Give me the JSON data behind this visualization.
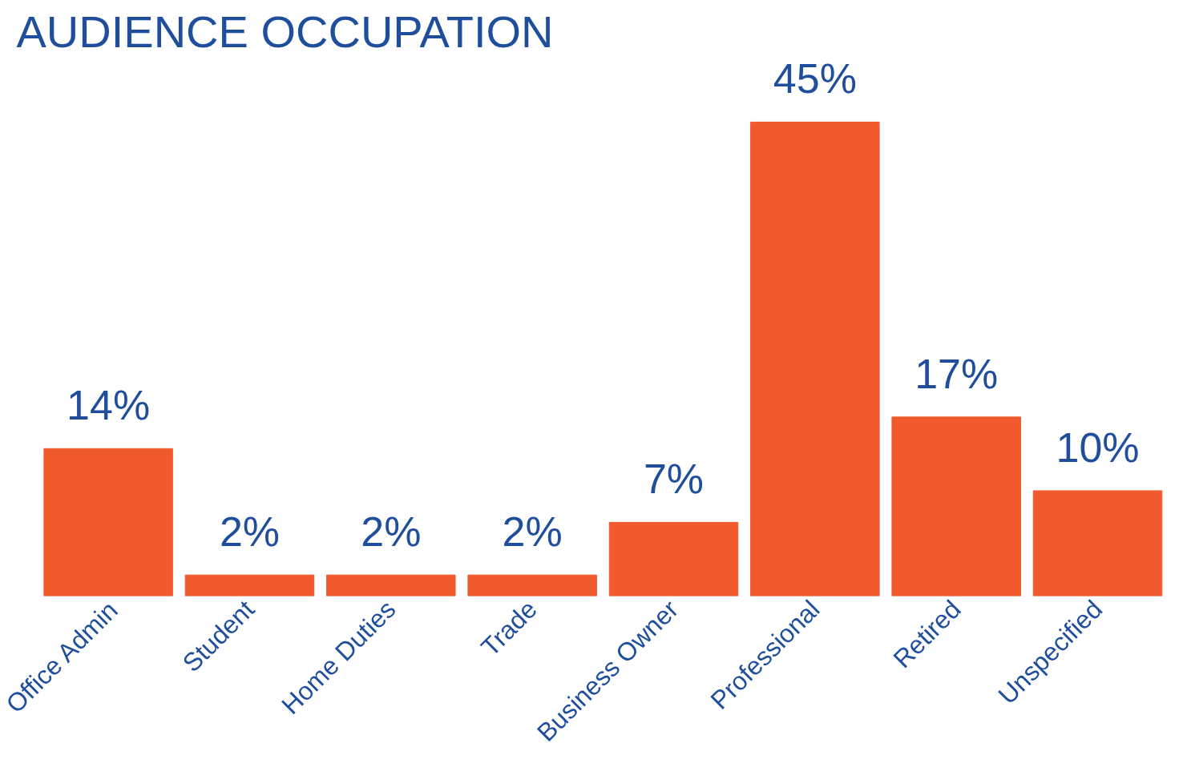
{
  "chart_data": {
    "type": "bar",
    "title": "AUDIENCE OCCUPATION",
    "categories": [
      "Office Admin",
      "Student",
      "Home Duties",
      "Trade",
      "Business Owner",
      "Professional",
      "Retired",
      "Unspecified"
    ],
    "values": [
      14,
      2,
      2,
      2,
      7,
      45,
      17,
      10
    ],
    "value_labels": [
      "14%",
      "2%",
      "2%",
      "2%",
      "7%",
      "45%",
      "17%",
      "10%"
    ],
    "color": "#f05a2c"
  }
}
